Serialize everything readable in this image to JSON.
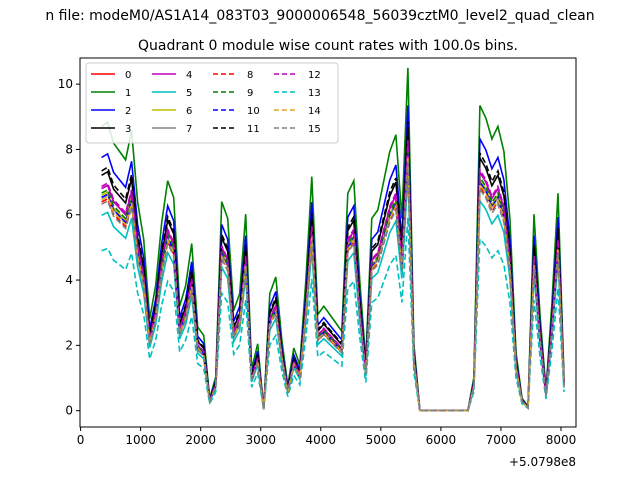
{
  "chart_data": {
    "type": "line",
    "suptitle": "n file: modeM0/AS1A14_083T03_9000006548_56039cztM0_level2_quad_clean",
    "title": "Quadrant 0 module wise count rates with 100.0s bins.",
    "xlabel": "",
    "ylabel": "",
    "x_offset_label": "+5.0798e8",
    "xlim": [
      -10,
      8250
    ],
    "ylim": [
      -0.5,
      10.8
    ],
    "xticks": [
      0,
      1000,
      2000,
      3000,
      4000,
      5000,
      6000,
      7000,
      8000
    ],
    "yticks": [
      0,
      2,
      4,
      6,
      8,
      10
    ],
    "legend_position": "top-left",
    "grid": false,
    "x": [
      350,
      450,
      550,
      650,
      750,
      850,
      950,
      1050,
      1150,
      1250,
      1350,
      1450,
      1550,
      1650,
      1750,
      1850,
      1950,
      2050,
      2150,
      2250,
      2350,
      2450,
      2550,
      2650,
      2750,
      2850,
      2950,
      3050,
      3150,
      3250,
      3350,
      3450,
      3550,
      3650,
      3750,
      3850,
      3950,
      4050,
      4150,
      4250,
      4350,
      4450,
      4550,
      4650,
      4750,
      4850,
      4950,
      5050,
      5150,
      5250,
      5350,
      5450,
      5550,
      5650,
      5750,
      5850,
      5950,
      6050,
      6150,
      6250,
      6350,
      6450,
      6550,
      6650,
      6750,
      6850,
      6950,
      7050,
      7150,
      7250,
      7350,
      7450,
      7550,
      7650,
      7750,
      7850,
      7950,
      8050
    ],
    "series": [
      {
        "name": "0",
        "color": "#ff0000",
        "dash": "solid"
      },
      {
        "name": "1",
        "color": "#008000",
        "dash": "solid"
      },
      {
        "name": "2",
        "color": "#0000ff",
        "dash": "solid"
      },
      {
        "name": "3",
        "color": "#000000",
        "dash": "solid"
      },
      {
        "name": "4",
        "color": "#bf00bf",
        "dash": "solid"
      },
      {
        "name": "5",
        "color": "#00bfbf",
        "dash": "solid"
      },
      {
        "name": "6",
        "color": "#bfbf00",
        "dash": "solid"
      },
      {
        "name": "7",
        "color": "#808080",
        "dash": "solid"
      },
      {
        "name": "8",
        "color": "#ff0000",
        "dash": "dashed"
      },
      {
        "name": "9",
        "color": "#008000",
        "dash": "dashed"
      },
      {
        "name": "10",
        "color": "#0000ff",
        "dash": "dashed"
      },
      {
        "name": "11",
        "color": "#000000",
        "dash": "dashed"
      },
      {
        "name": "12",
        "color": "#bf00bf",
        "dash": "dashed"
      },
      {
        "name": "13",
        "color": "#00bfbf",
        "dash": "dashed"
      },
      {
        "name": "14",
        "color": "#daa520",
        "dash": "dashed"
      },
      {
        "name": "15",
        "color": "#808080",
        "dash": "dashed"
      }
    ],
    "scale": [
      1.0,
      1.28,
      1.14,
      1.06,
      1.0,
      0.88,
      0.97,
      0.96,
      0.94,
      0.98,
      0.96,
      1.08,
      1.01,
      0.72,
      0.95,
      0.93
    ],
    "base_profile": [
      6.8,
      6.9,
      6.4,
      6.2,
      6.0,
      6.7,
      5.0,
      4.1,
      2.2,
      3.0,
      4.5,
      5.5,
      5.1,
      2.5,
      3.0,
      4.0,
      2.0,
      1.8,
      0.3,
      0.8,
      5.0,
      4.6,
      2.4,
      2.8,
      4.7,
      1.0,
      1.6,
      0.05,
      2.8,
      3.2,
      1.7,
      0.6,
      1.5,
      1.1,
      3.1,
      5.6,
      2.3,
      2.5,
      2.3,
      2.1,
      1.9,
      5.2,
      5.5,
      3.1,
      1.2,
      4.6,
      4.8,
      5.5,
      6.2,
      6.6,
      4.6,
      8.2,
      1.6,
      0.0,
      0.0,
      0.0,
      0.0,
      0.0,
      0.0,
      0.0,
      0.0,
      0.0,
      0.8,
      7.3,
      7.0,
      6.5,
      6.8,
      6.2,
      4.6,
      1.4,
      0.3,
      0.1,
      4.7,
      2.3,
      0.5,
      2.6,
      5.2,
      0.8
    ]
  }
}
